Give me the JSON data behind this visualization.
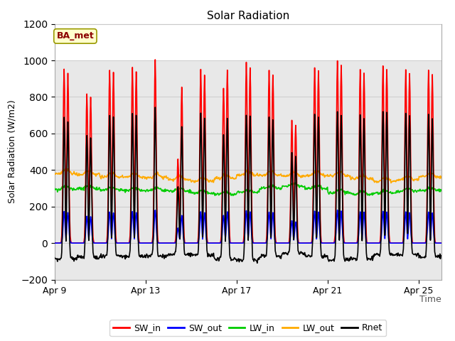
{
  "title": "Solar Radiation",
  "ylabel": "Solar Radiation (W/m2)",
  "xlabel": "Time",
  "ylim": [
    -200,
    1200
  ],
  "yticks": [
    -200,
    0,
    200,
    400,
    600,
    800,
    1000,
    1200
  ],
  "xtick_labels": [
    "Apr 9",
    "Apr 13",
    "Apr 17",
    "Apr 21",
    "Apr 25"
  ],
  "xtick_positions": [
    0,
    4,
    8,
    12,
    16
  ],
  "annotation_text": "BA_met",
  "legend_entries": [
    "SW_in",
    "SW_out",
    "LW_in",
    "LW_out",
    "Rnet"
  ],
  "colors": {
    "SW_in": "#ff0000",
    "SW_out": "#0000ff",
    "LW_in": "#00cc00",
    "LW_out": "#ffaa00",
    "Rnet": "#000000"
  },
  "bg_color": "#ffffff",
  "plot_bg_upper": "#ffffff",
  "plot_bg_lower": "#e8e8e8",
  "n_days": 17,
  "peaks_morning": [
    950,
    820,
    950,
    960,
    1005,
    460,
    950,
    850,
    990,
    950,
    670,
    960,
    1000,
    950,
    970,
    950,
    950
  ],
  "peaks_afternoon": [
    930,
    800,
    930,
    940,
    0,
    850,
    920,
    950,
    960,
    920,
    650,
    940,
    970,
    930,
    950,
    930,
    920
  ],
  "SW_out_scale": 0.18,
  "LW_in_base": 285,
  "LW_out_base": 360,
  "grid_color": "#cccccc",
  "line_width": 1.2
}
